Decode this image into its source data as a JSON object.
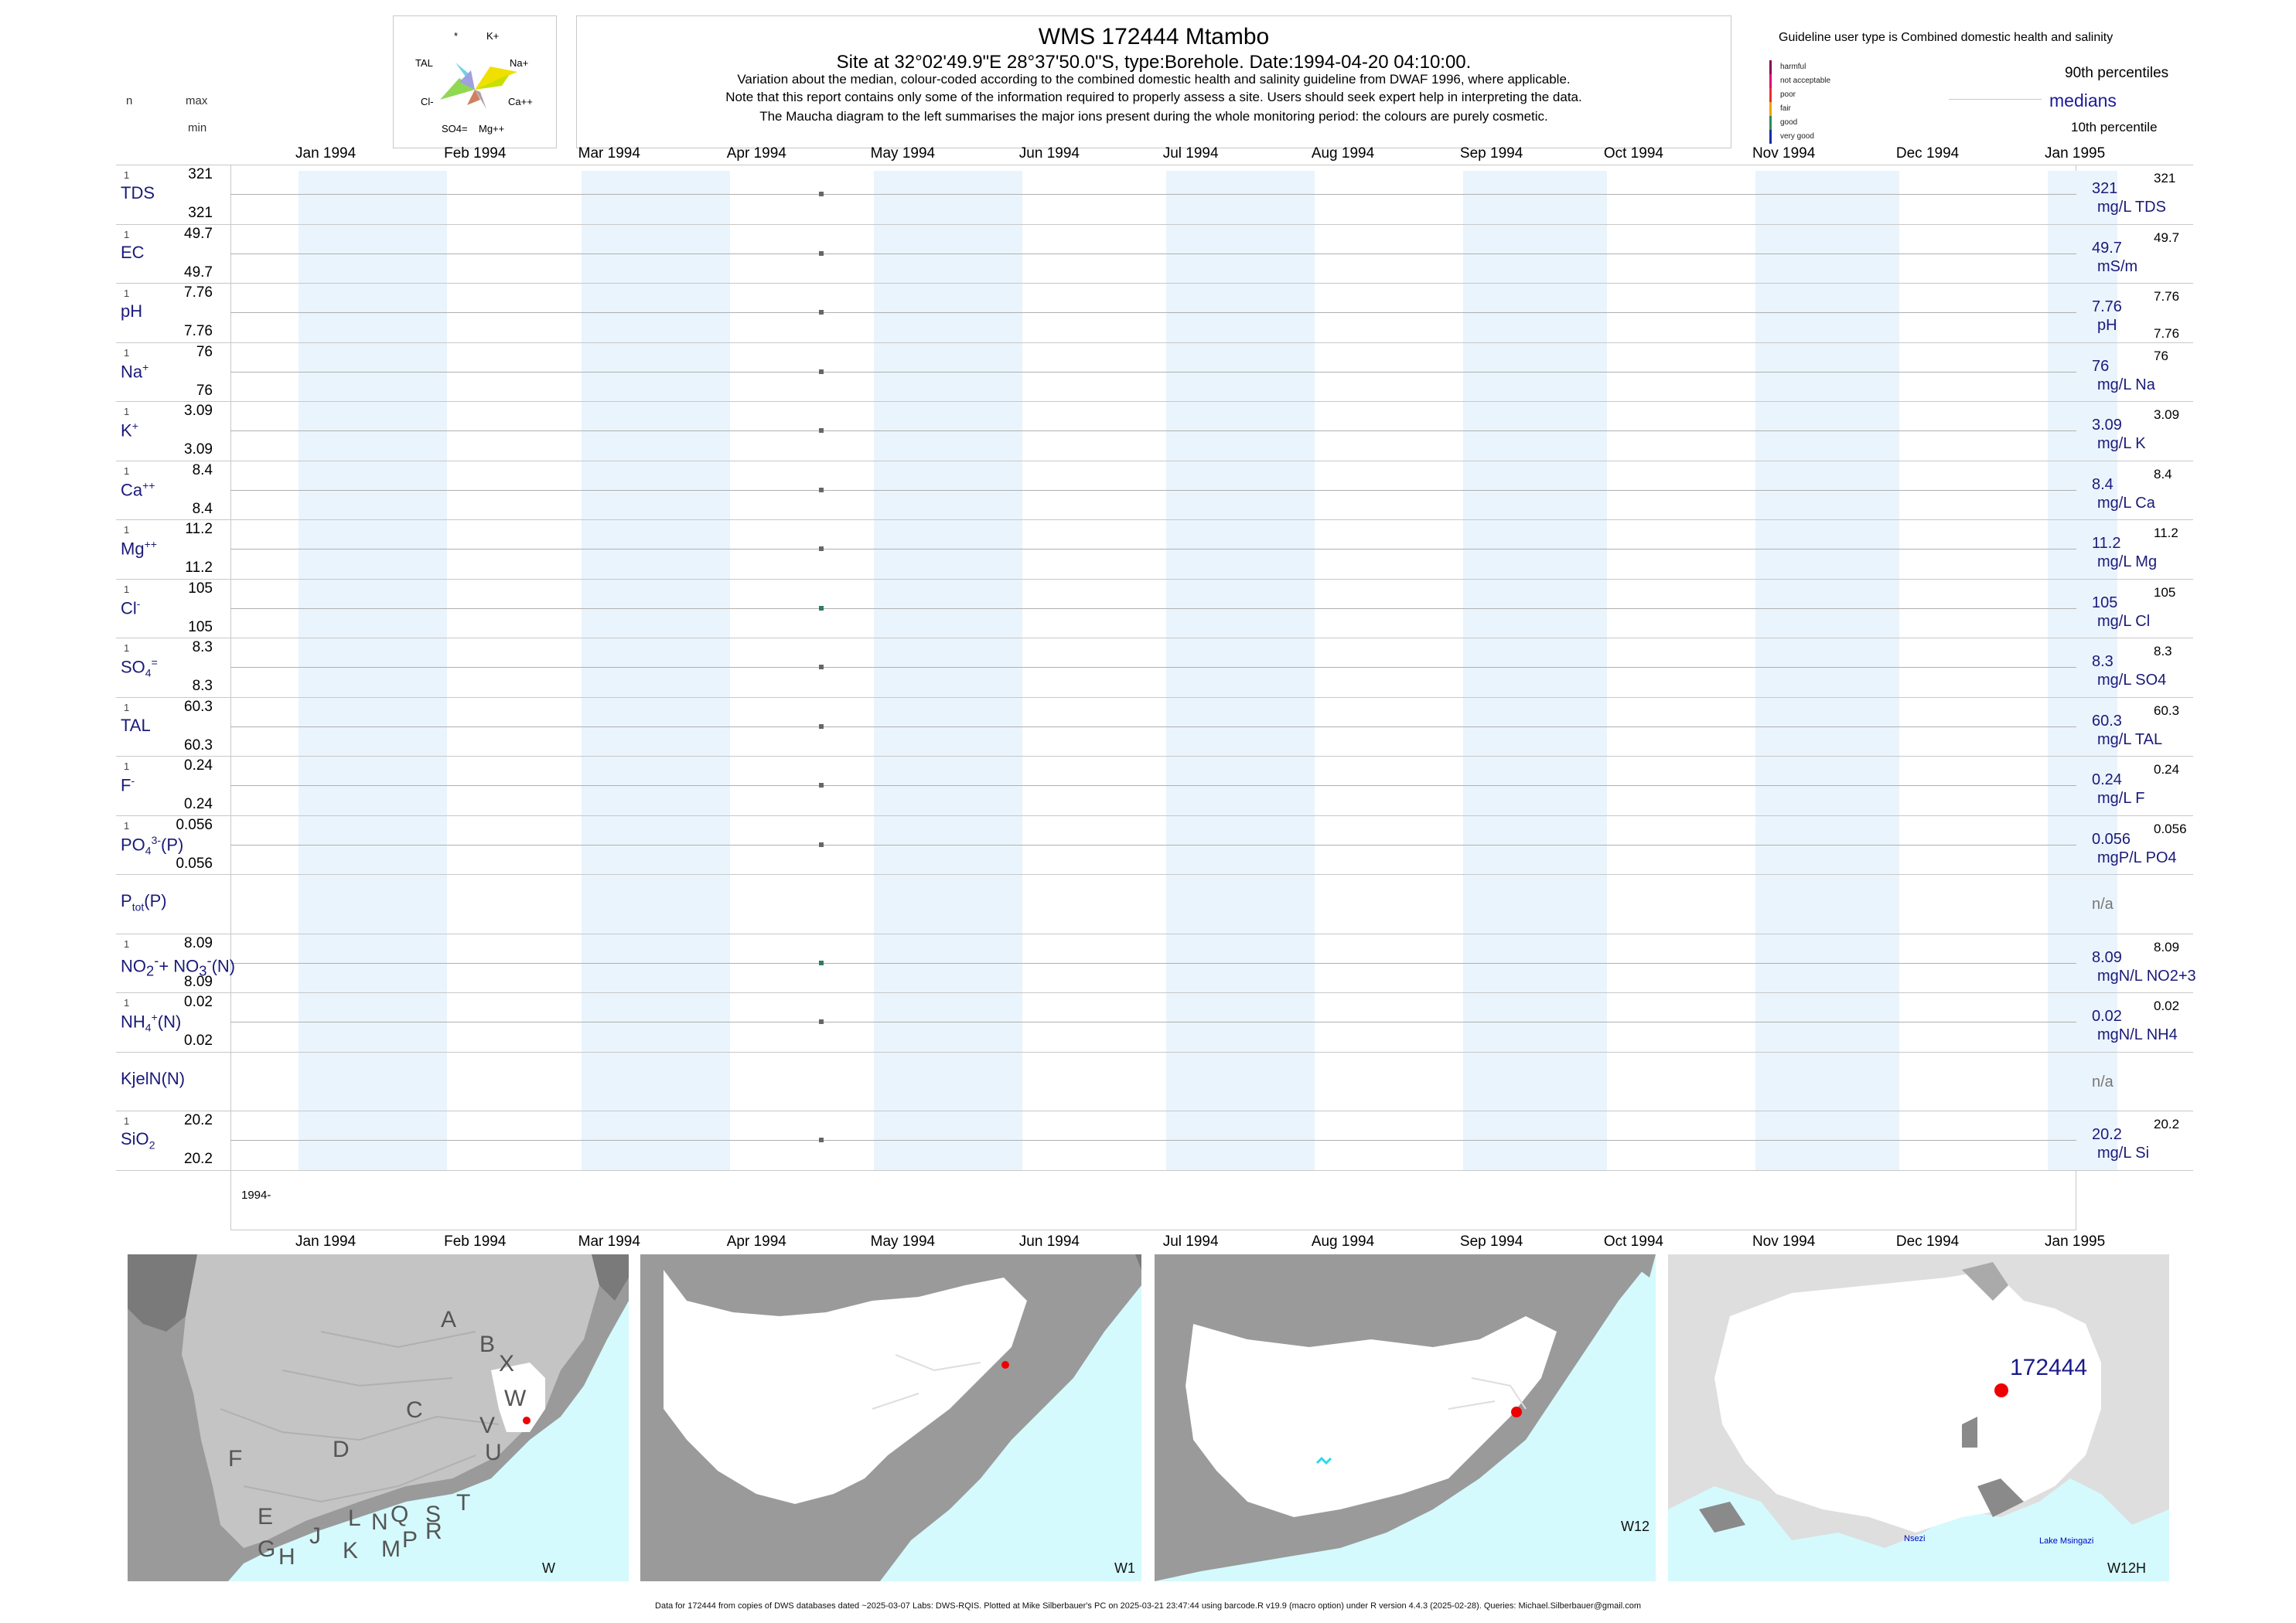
{
  "header": {
    "title": "WMS 172444  Mtambo",
    "subtitle": "Site at 32°02'49.9\"E 28°37'50.0\"S, type:Borehole. Date:1994-04-20 04:10:00.",
    "note_lines": [
      "Variation about the median,  colour-coded according to the combined domestic health and salinity guideline from DWAF 1996, where applicable.",
      "Note that this report contains only some of the information required to properly assess a site. Users should seek expert help in interpreting the data.",
      "The Maucha diagram to the left summarises the major ions present during the whole monitoring period: the colours are purely cosmetic."
    ],
    "left_n": "n",
    "left_max": "max",
    "left_min": "min"
  },
  "maucha": {
    "labels": [
      "*",
      "K+",
      "TAL",
      "Na+",
      "Cl-",
      "Ca++",
      "SO4=",
      "Mg++"
    ]
  },
  "legend": {
    "guideline_title": "Guideline user type is Combined domestic health and salinity",
    "categories": [
      {
        "label": "harmful",
        "color": "#8b0057"
      },
      {
        "label": "not acceptable",
        "color": "#e0007a"
      },
      {
        "label": "poor",
        "color": "#e53030"
      },
      {
        "label": "fair",
        "color": "#f0a000"
      },
      {
        "label": "good",
        "color": "#2e8b57"
      },
      {
        "label": "very good",
        "color": "#1a2aa8"
      }
    ],
    "p90": "90th percentiles",
    "medians": "medians",
    "p10": "10th percentile"
  },
  "axis": {
    "months": [
      "Jan 1994",
      "Feb 1994",
      "Mar 1994",
      "Apr 1994",
      "May 1994",
      "Jun 1994",
      "Jul 1994",
      "Aug 1994",
      "Sep 1994",
      "Oct 1994",
      "Nov 1994",
      "Dec 1994",
      "Jan 1995"
    ],
    "year_label": "1994-"
  },
  "chart_data": {
    "type": "scatter",
    "x_range": [
      "1994-01-01",
      "1995-01-01"
    ],
    "sample_date": "1994-04-20",
    "series": [
      {
        "name": "TDS",
        "sub": "",
        "sup": "",
        "n": "1",
        "max": "321",
        "min": "321",
        "value": "321",
        "unit": "mg/L TDS",
        "rmax": "321",
        "rmin": "",
        "color": "#666666"
      },
      {
        "name": "EC",
        "sub": "",
        "sup": "",
        "n": "1",
        "max": "49.7",
        "min": "49.7",
        "value": "49.7",
        "unit": "mS/m",
        "rmax": "49.7",
        "rmin": "",
        "color": "#666666"
      },
      {
        "name": "pH",
        "sub": "",
        "sup": "",
        "n": "1",
        "max": "7.76",
        "min": "7.76",
        "value": "7.76",
        "unit": "pH",
        "rmax": "7.76",
        "rmin": "7.76",
        "color": "#666666"
      },
      {
        "name": "Na",
        "sub": "",
        "sup": "+",
        "n": "1",
        "max": "76",
        "min": "76",
        "value": "76",
        "unit": "mg/L Na",
        "rmax": "76",
        "rmin": "",
        "color": "#666666"
      },
      {
        "name": "K",
        "sub": "",
        "sup": "+",
        "n": "1",
        "max": "3.09",
        "min": "3.09",
        "value": "3.09",
        "unit": "mg/L K",
        "rmax": "3.09",
        "rmin": "",
        "color": "#666666"
      },
      {
        "name": "Ca",
        "sub": "",
        "sup": "++",
        "n": "1",
        "max": "8.4",
        "min": "8.4",
        "value": "8.4",
        "unit": "mg/L Ca",
        "rmax": "8.4",
        "rmin": "",
        "color": "#666666"
      },
      {
        "name": "Mg",
        "sub": "",
        "sup": "++",
        "n": "1",
        "max": "11.2",
        "min": "11.2",
        "value": "11.2",
        "unit": "mg/L Mg",
        "rmax": "11.2",
        "rmin": "",
        "color": "#666666"
      },
      {
        "name": "Cl",
        "sub": "",
        "sup": "-",
        "n": "1",
        "max": "105",
        "min": "105",
        "value": "105",
        "unit": "mg/L Cl",
        "rmax": "105",
        "rmin": "",
        "color": "#2e7d5b"
      },
      {
        "name": "SO",
        "sub": "4",
        "sup": "=",
        "n": "1",
        "max": "8.3",
        "min": "8.3",
        "value": "8.3",
        "unit": "mg/L SO4",
        "rmax": "8.3",
        "rmin": "",
        "color": "#666666"
      },
      {
        "name": "TAL",
        "sub": "",
        "sup": "",
        "n": "1",
        "max": "60.3",
        "min": "60.3",
        "value": "60.3",
        "unit": "mg/L TAL",
        "rmax": "60.3",
        "rmin": "",
        "color": "#666666"
      },
      {
        "name": "F",
        "sub": "",
        "sup": "-",
        "n": "1",
        "max": "0.24",
        "min": "0.24",
        "value": "0.24",
        "unit": "mg/L F",
        "rmax": "0.24",
        "rmin": "",
        "color": "#666666"
      },
      {
        "name": "PO",
        "sub": "4",
        "sup": "3-",
        "suffix": "(P)",
        "n": "1",
        "max": "0.056",
        "min": "0.056",
        "value": "0.056",
        "unit": "mgP/L PO4",
        "rmax": "0.056",
        "rmin": "",
        "color": "#666666"
      },
      {
        "name": "P",
        "sub": "tot",
        "sup": "",
        "suffix": "(P)",
        "n": "",
        "max": "",
        "min": "",
        "value": "n/a",
        "unit": "",
        "rmax": "",
        "rmin": "",
        "color": "#666666",
        "na": true
      },
      {
        "name": "NO2+NO3(N)",
        "html": "NO<sub>2</sub><sup>-</sup>+ NO<sub>3</sub><sup>-</sup>(N)",
        "n": "1",
        "max": "8.09",
        "min": "8.09",
        "value": "8.09",
        "unit": "mgN/L NO2+3",
        "rmax": "8.09",
        "rmin": "",
        "color": "#2e7d5b"
      },
      {
        "name": "NH",
        "sub": "4",
        "sup": "+",
        "suffix": "(N)",
        "n": "1",
        "max": "0.02",
        "min": "0.02",
        "value": "0.02",
        "unit": "mgN/L NH4",
        "rmax": "0.02",
        "rmin": "",
        "color": "#666666"
      },
      {
        "name": "KjelN(N)",
        "sub": "",
        "sup": "",
        "n": "",
        "max": "",
        "min": "",
        "value": "n/a",
        "unit": "",
        "rmax": "",
        "rmin": "",
        "color": "#666666",
        "na": true
      },
      {
        "name": "SiO",
        "sub": "2",
        "sup": "",
        "n": "1",
        "max": "20.2",
        "min": "20.2",
        "value": "20.2",
        "unit": "mg/L Si",
        "rmax": "20.2",
        "rmin": "",
        "color": "#666666"
      }
    ]
  },
  "maps": [
    {
      "label": "W",
      "letters": [
        "A",
        "B",
        "X",
        "C",
        "W",
        "V",
        "U",
        "D",
        "T",
        "F",
        "E",
        "J",
        "L",
        "N",
        "Q",
        "S",
        "R",
        "P",
        "M",
        "K",
        "H",
        "G"
      ]
    },
    {
      "label": "W1"
    },
    {
      "label": "W12"
    },
    {
      "label": "W12H",
      "site": "172444",
      "places": [
        "Nsezi",
        "Lake Msingazi"
      ]
    }
  ],
  "footer": "Data for 172444 from copies of DWS databases dated ~2025-03-07 Labs: DWS-RQIS. Plotted at Mike Silberbauer's PC on 2025-03-21 23:47:44 using barcode.R v19.9 (macro option) under R version 4.4.3 (2025-02-28). Queries: Michael.Silberbauer@gmail.com"
}
